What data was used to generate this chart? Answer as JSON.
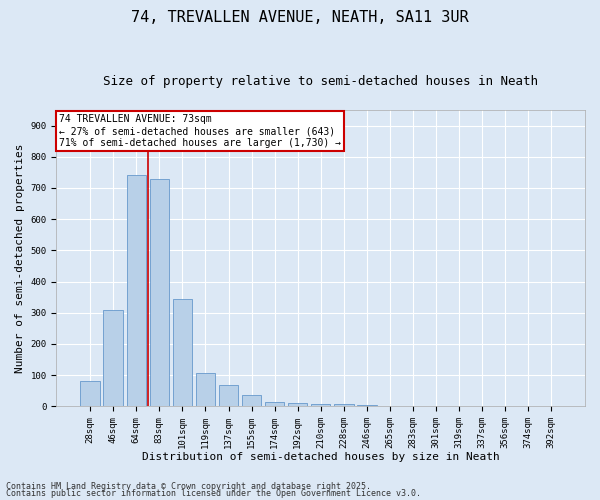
{
  "title_line1": "74, TREVALLEN AVENUE, NEATH, SA11 3UR",
  "title_line2": "Size of property relative to semi-detached houses in Neath",
  "xlabel": "Distribution of semi-detached houses by size in Neath",
  "ylabel": "Number of semi-detached properties",
  "categories": [
    "28sqm",
    "46sqm",
    "64sqm",
    "83sqm",
    "101sqm",
    "119sqm",
    "137sqm",
    "155sqm",
    "174sqm",
    "192sqm",
    "210sqm",
    "228sqm",
    "246sqm",
    "265sqm",
    "283sqm",
    "301sqm",
    "319sqm",
    "337sqm",
    "356sqm",
    "374sqm",
    "392sqm"
  ],
  "values": [
    82,
    308,
    743,
    728,
    343,
    107,
    70,
    37,
    13,
    11,
    9,
    6,
    3,
    0,
    0,
    0,
    0,
    0,
    0,
    0,
    0
  ],
  "bar_color": "#b8d0e8",
  "bar_edge_color": "#6699cc",
  "vline_x": 2.5,
  "vline_color": "#cc0000",
  "annotation_title": "74 TREVALLEN AVENUE: 73sqm",
  "annotation_line2": "← 27% of semi-detached houses are smaller (643)",
  "annotation_line3": "71% of semi-detached houses are larger (1,730) →",
  "annotation_box_color": "#cc0000",
  "annotation_text_color": "#000000",
  "annotation_bg_color": "#ffffff",
  "ylim": [
    0,
    950
  ],
  "yticks": [
    0,
    100,
    200,
    300,
    400,
    500,
    600,
    700,
    800,
    900
  ],
  "bg_color": "#dce8f5",
  "plot_bg_color": "#dce8f5",
  "grid_color": "#ffffff",
  "footer_line1": "Contains HM Land Registry data © Crown copyright and database right 2025.",
  "footer_line2": "Contains public sector information licensed under the Open Government Licence v3.0.",
  "title_fontsize": 11,
  "subtitle_fontsize": 9,
  "axis_label_fontsize": 8,
  "tick_fontsize": 6.5,
  "annot_fontsize": 7,
  "footer_fontsize": 6
}
